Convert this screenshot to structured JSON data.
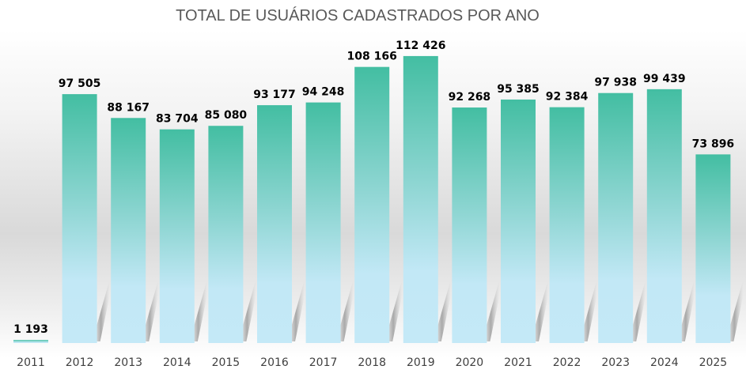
{
  "chart_data": {
    "type": "bar",
    "title": "TOTAL DE USUÁRIOS CADASTRADOS POR ANO",
    "xlabel": "",
    "ylabel": "",
    "categories": [
      "2011",
      "2012",
      "2013",
      "2014",
      "2015",
      "2016",
      "2017",
      "2018",
      "2019",
      "2020",
      "2021",
      "2022",
      "2023",
      "2024",
      "2025"
    ],
    "values": [
      1193,
      97505,
      88167,
      83704,
      85080,
      93177,
      94248,
      108166,
      112426,
      92268,
      95385,
      92384,
      97938,
      99439,
      73896
    ],
    "data_labels": [
      "1 193",
      "97 505",
      "88 167",
      "83 704",
      "85 080",
      "93 177",
      "94 248",
      "108 166",
      "112 426",
      "92 268",
      "95 385",
      "92 384",
      "97 938",
      "99 439",
      "73 896"
    ],
    "ylim": [
      0,
      122000
    ],
    "grid": false,
    "legend": "none",
    "colors": {
      "bar_top": "#43bea2",
      "bar_bottom": "#c2e8f6",
      "title": "#595959",
      "label": "#000000",
      "tick": "#404040"
    }
  }
}
